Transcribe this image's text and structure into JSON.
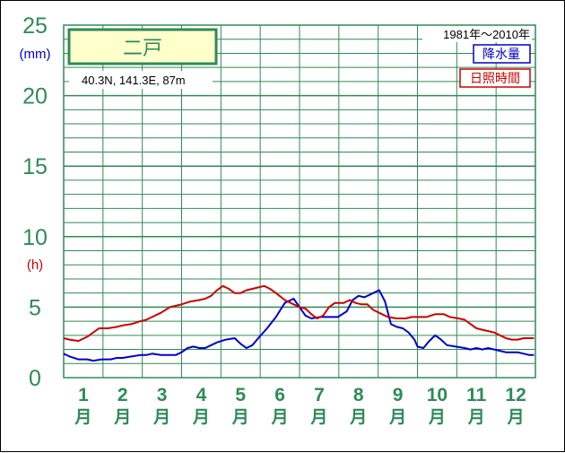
{
  "chart_data": {
    "type": "line",
    "station": "二戸",
    "coords": "40.3N,  141.3E,  87m",
    "period": "1981年～2010年",
    "legend": {
      "precip": "降水量",
      "sunshine": "日照時間"
    },
    "unit_top": "(mm)",
    "unit_mid": "(h)",
    "y_ticks": [
      "0",
      "5",
      "10",
      "15",
      "20",
      "25"
    ],
    "ylim": [
      0,
      25
    ],
    "months": [
      {
        "num": "1",
        "kanji": "月"
      },
      {
        "num": "2",
        "kanji": "月"
      },
      {
        "num": "3",
        "kanji": "月"
      },
      {
        "num": "4",
        "kanji": "月"
      },
      {
        "num": "5",
        "kanji": "月"
      },
      {
        "num": "6",
        "kanji": "月"
      },
      {
        "num": "7",
        "kanji": "月"
      },
      {
        "num": "8",
        "kanji": "月"
      },
      {
        "num": "9",
        "kanji": "月"
      },
      {
        "num": "10",
        "kanji": "月"
      },
      {
        "num": "11",
        "kanji": "月"
      },
      {
        "num": "12",
        "kanji": "月"
      }
    ],
    "series": [
      {
        "name": "降水量",
        "color": "#0000cc",
        "points": [
          [
            0,
            1.7
          ],
          [
            0.2,
            1.5
          ],
          [
            0.5,
            1.3
          ],
          [
            0.8,
            1.3
          ],
          [
            1,
            1.2
          ],
          [
            1.3,
            1.3
          ],
          [
            1.6,
            1.3
          ],
          [
            1.8,
            1.4
          ],
          [
            2,
            1.4
          ],
          [
            2.3,
            1.5
          ],
          [
            2.6,
            1.6
          ],
          [
            2.8,
            1.6
          ],
          [
            3,
            1.7
          ],
          [
            3.3,
            1.6
          ],
          [
            3.6,
            1.6
          ],
          [
            3.8,
            1.6
          ],
          [
            4,
            1.8
          ],
          [
            4.2,
            2.1
          ],
          [
            4.4,
            2.2
          ],
          [
            4.6,
            2.1
          ],
          [
            4.8,
            2.1
          ],
          [
            5,
            2.3
          ],
          [
            5.2,
            2.5
          ],
          [
            5.5,
            2.7
          ],
          [
            5.8,
            2.8
          ],
          [
            6,
            2.4
          ],
          [
            6.2,
            2.1
          ],
          [
            6.4,
            2.3
          ],
          [
            6.6,
            2.8
          ],
          [
            6.9,
            3.5
          ],
          [
            7.2,
            4.3
          ],
          [
            7.5,
            5.3
          ],
          [
            7.8,
            5.6
          ],
          [
            8,
            5.0
          ],
          [
            8.2,
            4.4
          ],
          [
            8.4,
            4.2
          ],
          [
            8.7,
            4.3
          ],
          [
            9,
            4.3
          ],
          [
            9.3,
            4.3
          ],
          [
            9.6,
            4.7
          ],
          [
            9.8,
            5.5
          ],
          [
            10,
            5.8
          ],
          [
            10.2,
            5.7
          ],
          [
            10.5,
            6.0
          ],
          [
            10.7,
            6.2
          ],
          [
            10.9,
            5.4
          ],
          [
            11.1,
            3.8
          ],
          [
            11.3,
            3.6
          ],
          [
            11.5,
            3.5
          ],
          [
            11.7,
            3.2
          ],
          [
            11.9,
            2.7
          ],
          [
            12,
            2.2
          ],
          [
            12.2,
            2.1
          ],
          [
            12.4,
            2.6
          ],
          [
            12.6,
            3.0
          ],
          [
            12.8,
            2.7
          ],
          [
            13,
            2.3
          ],
          [
            13.3,
            2.2
          ],
          [
            13.6,
            2.1
          ],
          [
            13.8,
            2.0
          ],
          [
            14,
            2.1
          ],
          [
            14.2,
            2.0
          ],
          [
            14.4,
            2.1
          ],
          [
            14.6,
            2.0
          ],
          [
            14.8,
            1.9
          ],
          [
            15,
            1.8
          ],
          [
            15.2,
            1.8
          ],
          [
            15.4,
            1.8
          ],
          [
            15.6,
            1.7
          ],
          [
            15.8,
            1.6
          ],
          [
            15.95,
            1.6
          ]
        ]
      },
      {
        "name": "日照時間",
        "color": "#cc0000",
        "points": [
          [
            0,
            2.8
          ],
          [
            0.2,
            2.7
          ],
          [
            0.5,
            2.6
          ],
          [
            0.8,
            2.9
          ],
          [
            1,
            3.2
          ],
          [
            1.2,
            3.5
          ],
          [
            1.5,
            3.5
          ],
          [
            1.8,
            3.6
          ],
          [
            2,
            3.7
          ],
          [
            2.3,
            3.8
          ],
          [
            2.6,
            4.0
          ],
          [
            2.8,
            4.1
          ],
          [
            3,
            4.3
          ],
          [
            3.3,
            4.6
          ],
          [
            3.6,
            5.0
          ],
          [
            3.8,
            5.1
          ],
          [
            4,
            5.2
          ],
          [
            4.3,
            5.4
          ],
          [
            4.6,
            5.5
          ],
          [
            4.8,
            5.6
          ],
          [
            5,
            5.8
          ],
          [
            5.2,
            6.2
          ],
          [
            5.4,
            6.5
          ],
          [
            5.6,
            6.3
          ],
          [
            5.8,
            6.0
          ],
          [
            6,
            6.0
          ],
          [
            6.2,
            6.2
          ],
          [
            6.4,
            6.3
          ],
          [
            6.6,
            6.4
          ],
          [
            6.8,
            6.5
          ],
          [
            7,
            6.3
          ],
          [
            7.2,
            6.0
          ],
          [
            7.5,
            5.5
          ],
          [
            7.8,
            5.2
          ],
          [
            8,
            5.0
          ],
          [
            8.2,
            4.9
          ],
          [
            8.4,
            4.5
          ],
          [
            8.6,
            4.2
          ],
          [
            8.8,
            4.4
          ],
          [
            9,
            5.0
          ],
          [
            9.2,
            5.3
          ],
          [
            9.5,
            5.3
          ],
          [
            9.7,
            5.5
          ],
          [
            9.9,
            5.3
          ],
          [
            10.1,
            5.2
          ],
          [
            10.3,
            5.2
          ],
          [
            10.5,
            4.8
          ],
          [
            10.8,
            4.5
          ],
          [
            11,
            4.3
          ],
          [
            11.3,
            4.2
          ],
          [
            11.6,
            4.2
          ],
          [
            11.8,
            4.3
          ],
          [
            12,
            4.3
          ],
          [
            12.3,
            4.3
          ],
          [
            12.6,
            4.5
          ],
          [
            12.9,
            4.5
          ],
          [
            13.1,
            4.3
          ],
          [
            13.4,
            4.2
          ],
          [
            13.6,
            4.1
          ],
          [
            13.8,
            3.8
          ],
          [
            14,
            3.5
          ],
          [
            14.2,
            3.4
          ],
          [
            14.4,
            3.3
          ],
          [
            14.6,
            3.2
          ],
          [
            14.8,
            3.0
          ],
          [
            15,
            2.8
          ],
          [
            15.2,
            2.7
          ],
          [
            15.4,
            2.7
          ],
          [
            15.6,
            2.8
          ],
          [
            15.8,
            2.8
          ],
          [
            15.95,
            2.8
          ]
        ]
      }
    ]
  }
}
